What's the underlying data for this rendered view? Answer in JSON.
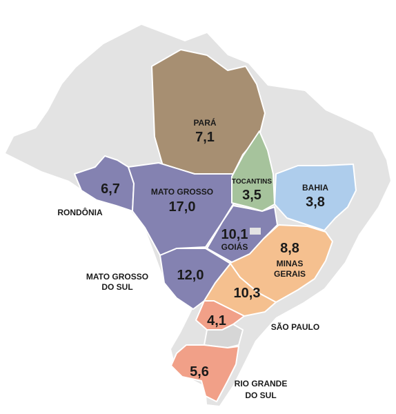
{
  "colors": {
    "background_land": "#e3e3e3",
    "brown": "#a78f72",
    "purple": "#8482b1",
    "green": "#a6c39c",
    "light_blue": "#aecdec",
    "orange": "#f5c08f",
    "salmon": "#f1a088"
  },
  "regions": {
    "para": {
      "name": "PARÁ",
      "value": "7,1",
      "color": "#a78f72"
    },
    "rondonia": {
      "name": "RONDÔNIA",
      "value": "6,7",
      "color": "#8482b1"
    },
    "mato_grosso": {
      "name": "MATO GROSSO",
      "value": "17,0",
      "color": "#8482b1"
    },
    "tocantins": {
      "name": "TOCANTINS",
      "value": "3,5",
      "color": "#a6c39c"
    },
    "bahia": {
      "name": "BAHIA",
      "value": "3,8",
      "color": "#aecdec"
    },
    "goias": {
      "name": "GOIÁS",
      "value": "10,1",
      "color": "#8482b1"
    },
    "minas_gerais": {
      "name_line1": "MINAS",
      "name_line2": "GERAIS",
      "value": "8,8",
      "color": "#f5c08f"
    },
    "mato_grosso_do_sul": {
      "name_line1": "MATO GROSSO",
      "name_line2": "DO SUL",
      "value": "12,0",
      "color": "#8482b1"
    },
    "sao_paulo": {
      "name": "SÃO PAULO",
      "value": "10,3",
      "color": "#f5c08f"
    },
    "parana": {
      "value": "4,1",
      "color": "#f1a088"
    },
    "rio_grande_do_sul": {
      "name_line1": "RIO GRANDE",
      "name_line2": "DO SUL",
      "value": "5,6",
      "color": "#f1a088"
    }
  }
}
